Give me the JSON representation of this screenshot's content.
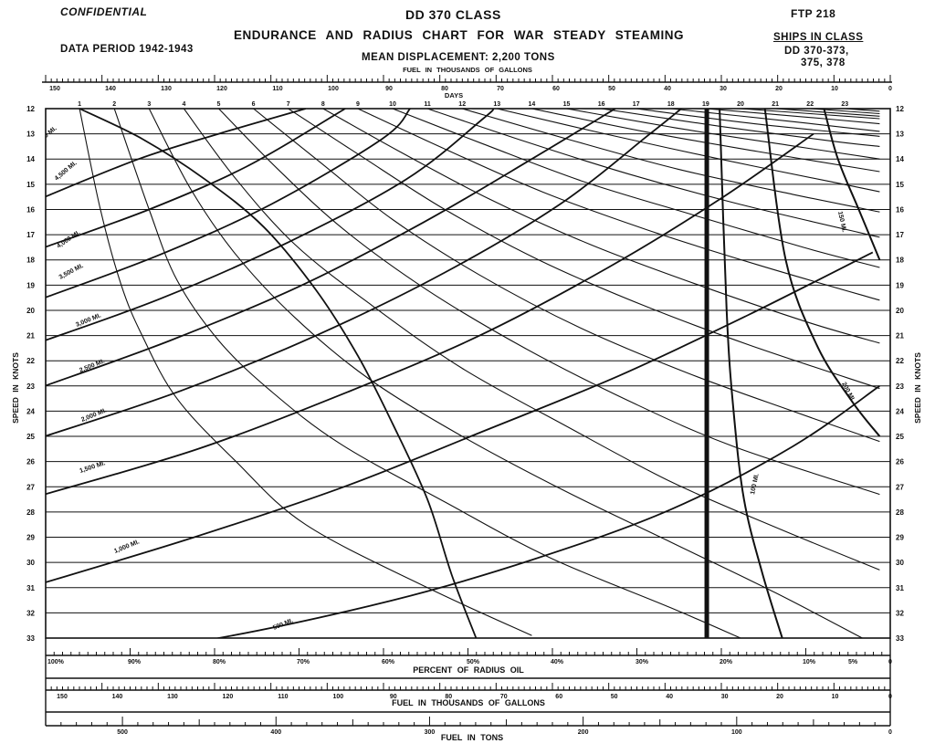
{
  "header": {
    "confidential": "CONFIDENTIAL",
    "class_title": "DD 370 CLASS",
    "main_title": "ENDURANCE AND RADIUS CHART FOR WAR STEADY STEAMING",
    "data_period": "DATA PERIOD 1942-1943",
    "displacement": "MEAN DISPLACEMENT: 2,200 TONS",
    "ftp": "FTP 218",
    "ships_heading": "SHIPS IN CLASS",
    "ships_line1": "DD 370-373,",
    "ships_line2": "375, 378"
  },
  "chart_data": {
    "type": "line",
    "title": "ENDURANCE AND RADIUS CHART FOR WAR STEADY STEAMING",
    "ylabel_left": "SPEED IN KNOTS",
    "ylabel_right": "SPEED IN KNOTS",
    "y_ticks": [
      12,
      13,
      14,
      15,
      16,
      17,
      18,
      19,
      20,
      21,
      22,
      23,
      24,
      25,
      26,
      27,
      28,
      29,
      30,
      31,
      32,
      33
    ],
    "ylim": [
      12,
      33
    ],
    "y_inverted": true,
    "grid": true,
    "top_fuel_axis": {
      "label": "FUEL IN THOUSANDS OF GALLONS",
      "range": [
        150,
        0
      ],
      "tick_labels": [
        "150",
        "140",
        "130",
        "120",
        "110",
        "100",
        "90",
        "80",
        "70",
        "60",
        "50",
        "40",
        "30",
        "20",
        "10",
        "0"
      ]
    },
    "days_axis": {
      "label": "DAYS",
      "tick_labels": [
        "1",
        "2",
        "3",
        "4",
        "5",
        "6",
        "7",
        "8",
        "9",
        "10",
        "11",
        "12",
        "13",
        "14",
        "15",
        "16",
        "17",
        "18",
        "19",
        "20",
        "21",
        "22",
        "23"
      ]
    },
    "percent_axis": {
      "label": "PERCENT OF RADIUS OIL",
      "range": [
        100,
        0
      ],
      "tick_labels": [
        "100%",
        "90%",
        "80%",
        "70%",
        "60%",
        "50%",
        "40%",
        "30%",
        "20%",
        "10%",
        "5%",
        "0"
      ]
    },
    "bottom_fuel_axis": {
      "label": "FUEL IN THOUSANDS OF GALLONS",
      "range": [
        150,
        0
      ],
      "tick_labels": [
        "150",
        "140",
        "130",
        "120",
        "110",
        "100",
        "90",
        "80",
        "70",
        "60",
        "50",
        "40",
        "30",
        "20",
        "10",
        "0"
      ]
    },
    "tons_axis": {
      "label": "FUEL IN TONS",
      "range": [
        550,
        0
      ],
      "tick_labels": [
        "500",
        "400",
        "300",
        "200",
        "100",
        "0"
      ]
    },
    "radius_curves": [
      {
        "label": "5,000 MI.",
        "points": [
          [
            1,
            12
          ],
          [
            2.8,
            13.2
          ],
          [
            4.6,
            14.8
          ],
          [
            6.3,
            16.7
          ],
          [
            7.8,
            19.2
          ],
          [
            9,
            21.8
          ],
          [
            10,
            24.5
          ],
          [
            11,
            27.5
          ],
          [
            11.7,
            30.5
          ],
          [
            12.4,
            33
          ]
        ]
      },
      {
        "label": "4,500 MI.",
        "points": [
          [
            0,
            15.5
          ],
          [
            2.7,
            14
          ],
          [
            5,
            13
          ],
          [
            7.5,
            12
          ]
        ]
      },
      {
        "label": "4,000 MI.",
        "points": [
          [
            0,
            17.5
          ],
          [
            3,
            16
          ],
          [
            5.8,
            14.3
          ],
          [
            8.4,
            12.2
          ],
          [
            8.6,
            12
          ]
        ]
      },
      {
        "label": "3,500 MI.",
        "points": [
          [
            0,
            19.5
          ],
          [
            3.3,
            17.8
          ],
          [
            6.5,
            15.8
          ],
          [
            9.7,
            13.2
          ],
          [
            10.5,
            12
          ]
        ]
      },
      {
        "label": "3,000 MI.",
        "points": [
          [
            0,
            21.2
          ],
          [
            3.4,
            19.5
          ],
          [
            7,
            17.3
          ],
          [
            10.4,
            14.8
          ],
          [
            12.6,
            12.4
          ],
          [
            12.9,
            12
          ]
        ]
      },
      {
        "label": "2,500 MI.",
        "points": [
          [
            0,
            23
          ],
          [
            3.6,
            21.2
          ],
          [
            7.4,
            19
          ],
          [
            10.9,
            16.5
          ],
          [
            14,
            14
          ],
          [
            16.4,
            12
          ]
        ]
      },
      {
        "label": "2,000 MI.",
        "points": [
          [
            0,
            25
          ],
          [
            3.9,
            23.2
          ],
          [
            7.8,
            21
          ],
          [
            11.5,
            18.5
          ],
          [
            14.8,
            15.8
          ],
          [
            17.4,
            13
          ],
          [
            18.3,
            12
          ]
        ]
      },
      {
        "label": "1,500 MI.",
        "points": [
          [
            0,
            27.3
          ],
          [
            4.4,
            25.5
          ],
          [
            8.6,
            23.3
          ],
          [
            12.5,
            21
          ],
          [
            16.2,
            18.3
          ],
          [
            19.4,
            15.6
          ],
          [
            22.1,
            13
          ]
        ]
      },
      {
        "label": "1,000 MI.",
        "points": [
          [
            0,
            30.8
          ],
          [
            4.3,
            29
          ],
          [
            8.6,
            27
          ],
          [
            12.6,
            24.8
          ],
          [
            16.5,
            22.6
          ],
          [
            20.2,
            20.2
          ],
          [
            23.8,
            17.7
          ]
        ]
      },
      {
        "label": "500 MI.",
        "points": [
          [
            0,
            34
          ],
          [
            5,
            33
          ],
          [
            10,
            31.5
          ],
          [
            14,
            29.9
          ],
          [
            18,
            27.9
          ],
          [
            21.5,
            25.4
          ],
          [
            24,
            23
          ]
        ]
      }
    ],
    "days_curves": [
      {
        "label": "1",
        "points": [
          [
            1,
            12
          ],
          [
            1.6,
            16
          ],
          [
            2.2,
            19
          ],
          [
            2.8,
            21
          ],
          [
            3.8,
            23.5
          ],
          [
            5.5,
            26
          ],
          [
            7.5,
            28.5
          ],
          [
            11,
            31
          ],
          [
            14,
            32.9
          ]
        ]
      },
      {
        "label": "2",
        "points": [
          [
            2,
            12
          ],
          [
            3,
            16
          ],
          [
            3.8,
            18.8
          ],
          [
            5,
            21.2
          ],
          [
            6.5,
            23.2
          ],
          [
            8.5,
            25.3
          ],
          [
            11.5,
            27.6
          ],
          [
            14.5,
            29.8
          ],
          [
            18,
            31.8
          ],
          [
            20,
            33
          ]
        ]
      },
      {
        "label": "3",
        "points": [
          [
            3,
            12
          ],
          [
            4.2,
            15.2
          ],
          [
            5.5,
            17.8
          ],
          [
            7.2,
            20.3
          ],
          [
            9.3,
            22.7
          ],
          [
            12,
            25
          ],
          [
            15,
            27.2
          ],
          [
            18,
            29.2
          ],
          [
            21,
            31.2
          ],
          [
            23.5,
            33
          ]
        ]
      },
      {
        "label": "4",
        "points": [
          [
            4,
            12
          ],
          [
            5.5,
            14.8
          ],
          [
            7.2,
            17.4
          ],
          [
            9.4,
            19.8
          ],
          [
            12,
            22.3
          ],
          [
            15,
            24.6
          ],
          [
            18,
            26.8
          ],
          [
            21,
            28.6
          ],
          [
            24,
            30.3
          ]
        ]
      },
      {
        "label": "5",
        "points": [
          [
            5,
            12
          ],
          [
            6.7,
            14.4
          ],
          [
            8.6,
            16.8
          ],
          [
            11,
            19.2
          ],
          [
            13.8,
            21.5
          ],
          [
            16.8,
            23.6
          ],
          [
            19.8,
            25.4
          ],
          [
            24,
            27.3
          ]
        ]
      },
      {
        "label": "6",
        "points": [
          [
            6,
            12
          ],
          [
            7.8,
            14
          ],
          [
            10,
            16.4
          ],
          [
            12.5,
            18.6
          ],
          [
            15.4,
            20.7
          ],
          [
            18.5,
            22.5
          ],
          [
            21.5,
            24
          ],
          [
            24,
            25.2
          ]
        ]
      },
      {
        "label": "7",
        "points": [
          [
            7,
            12
          ],
          [
            9,
            13.8
          ],
          [
            11.5,
            16
          ],
          [
            14.2,
            18
          ],
          [
            17.2,
            19.8
          ],
          [
            20.3,
            21.4
          ],
          [
            24,
            23.1
          ]
        ]
      },
      {
        "label": "8",
        "points": [
          [
            8,
            12
          ],
          [
            10.2,
            13.7
          ],
          [
            12.8,
            15.6
          ],
          [
            15.7,
            17.4
          ],
          [
            18.8,
            19
          ],
          [
            22,
            20.5
          ],
          [
            24,
            21.3
          ]
        ]
      },
      {
        "label": "9",
        "points": [
          [
            9,
            12
          ],
          [
            11.5,
            13.6
          ],
          [
            14.3,
            15.3
          ],
          [
            17.3,
            16.8
          ],
          [
            20.5,
            18.2
          ],
          [
            24,
            19.6
          ]
        ]
      },
      {
        "label": "10",
        "points": [
          [
            10,
            12
          ],
          [
            12.6,
            13.4
          ],
          [
            15.5,
            14.9
          ],
          [
            18.6,
            16.2
          ],
          [
            21.8,
            17.5
          ],
          [
            24,
            18.3
          ]
        ]
      },
      {
        "label": "11",
        "points": [
          [
            11,
            12
          ],
          [
            13.8,
            13.3
          ],
          [
            16.8,
            14.6
          ],
          [
            20,
            15.8
          ],
          [
            24,
            17.1
          ]
        ]
      },
      {
        "label": "12",
        "points": [
          [
            12,
            12
          ],
          [
            15,
            13.2
          ],
          [
            18.2,
            14.4
          ],
          [
            21.5,
            15.4
          ],
          [
            24,
            16.1
          ]
        ]
      },
      {
        "label": "13",
        "points": [
          [
            13,
            12
          ],
          [
            16.1,
            13
          ],
          [
            19.4,
            14
          ],
          [
            22.6,
            14.9
          ],
          [
            24,
            15.3
          ]
        ]
      },
      {
        "label": "14",
        "points": [
          [
            14,
            12
          ],
          [
            17.2,
            12.9
          ],
          [
            20.5,
            13.7
          ],
          [
            24,
            14.5
          ]
        ]
      },
      {
        "label": "15",
        "points": [
          [
            15,
            12
          ],
          [
            18.3,
            12.8
          ],
          [
            21.6,
            13.5
          ],
          [
            24,
            14
          ]
        ]
      },
      {
        "label": "16",
        "points": [
          [
            16,
            12
          ],
          [
            19.4,
            12.7
          ],
          [
            22.7,
            13.3
          ],
          [
            24,
            13.5
          ]
        ]
      },
      {
        "label": "17",
        "points": [
          [
            17,
            12
          ],
          [
            20.4,
            12.6
          ],
          [
            24,
            13.1
          ]
        ]
      },
      {
        "label": "18",
        "points": [
          [
            18,
            12
          ],
          [
            21.4,
            12.5
          ],
          [
            24,
            12.9
          ]
        ]
      },
      {
        "label": "19",
        "points": [
          [
            19,
            12
          ],
          [
            22.4,
            12.4
          ],
          [
            24,
            12.6
          ]
        ]
      },
      {
        "label": "20",
        "points": [
          [
            20,
            12
          ],
          [
            24,
            12.4
          ]
        ]
      },
      {
        "label": "21",
        "points": [
          [
            21,
            12
          ],
          [
            24,
            12.3
          ]
        ]
      },
      {
        "label": "22",
        "points": [
          [
            22,
            12
          ],
          [
            24,
            12.2
          ]
        ]
      },
      {
        "label": "23",
        "points": [
          [
            23,
            12
          ],
          [
            24,
            12.1
          ]
        ]
      }
    ],
    "reserve_line": {
      "label": "",
      "points": [
        [
          19.03,
          12
        ],
        [
          19.03,
          33
        ]
      ]
    },
    "right_curves": [
      {
        "label": "100 MI.",
        "points": [
          [
            19.4,
            12
          ],
          [
            19.6,
            20
          ],
          [
            19.8,
            24
          ],
          [
            20.1,
            27.5
          ],
          [
            20.6,
            30.3
          ],
          [
            21.2,
            33
          ]
        ]
      },
      {
        "label": "150 MI.",
        "points": [
          [
            20.7,
            12
          ],
          [
            21.3,
            18
          ],
          [
            22.2,
            21.4
          ],
          [
            23.2,
            23.6
          ],
          [
            24,
            25
          ]
        ]
      },
      {
        "label": "200 MI.",
        "points": [
          [
            22.4,
            12
          ],
          [
            22.8,
            14
          ],
          [
            23.4,
            16
          ],
          [
            24,
            18
          ]
        ]
      }
    ],
    "annotations": [
      "5,000 MI.",
      "4,500 MI.",
      "4,000 MI.",
      "3,500 MI.",
      "3,000 MI.",
      "2,500 MI.",
      "2,000 MI.",
      "1,500 MI.",
      "1,000 MI.",
      "500 MI.",
      "100 MI.",
      "150 MI.",
      "200 MI."
    ]
  }
}
